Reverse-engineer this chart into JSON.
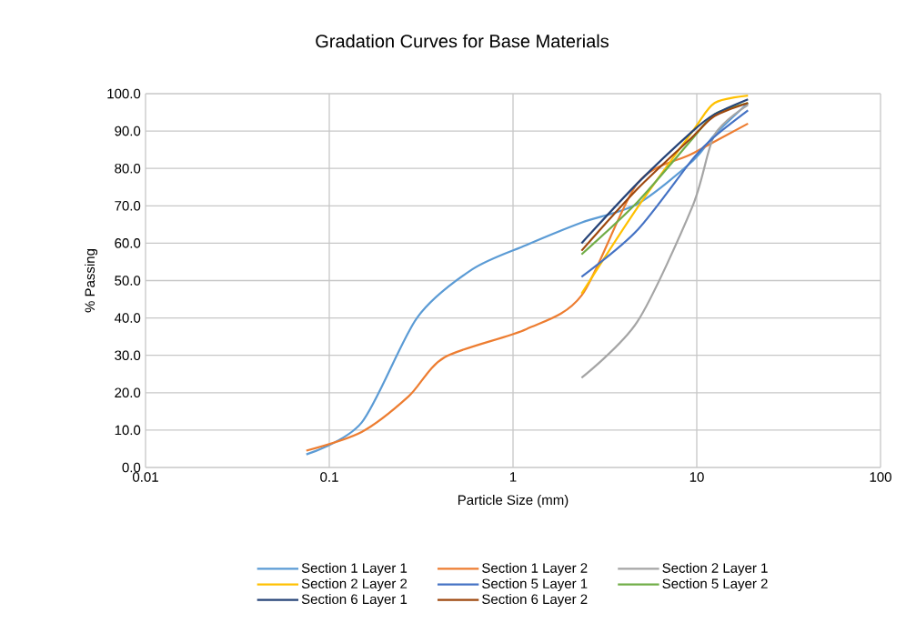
{
  "chart_data": {
    "type": "line",
    "title": "Gradation Curves for Base Materials",
    "xlabel": "Particle Size (mm)",
    "ylabel": "% Passing",
    "log": "x",
    "xlim": [
      0.01,
      100
    ],
    "xticks": [
      0.01,
      0.1,
      1,
      10,
      100
    ],
    "ylim": [
      0,
      100
    ],
    "yticks": [
      {
        "value": 0,
        "label": "0.0"
      },
      {
        "value": 10,
        "label": "10.0"
      },
      {
        "value": 20,
        "label": "20.0"
      },
      {
        "value": 30,
        "label": "30.0"
      },
      {
        "value": 40,
        "label": "40.0"
      },
      {
        "value": 50,
        "label": "50.0"
      },
      {
        "value": 60,
        "label": "60.0"
      },
      {
        "value": 70,
        "label": "70.0"
      },
      {
        "value": 80,
        "label": "80.0"
      },
      {
        "value": 90,
        "label": "90.0"
      },
      {
        "value": 100,
        "label": "100.0"
      }
    ],
    "grid": true,
    "legend": "bottom",
    "marker": "none",
    "series": [
      {
        "name": "Section 1 Layer 1",
        "color": "#5b9bd5",
        "x": [
          0.075,
          0.15,
          0.3,
          0.6,
          1.18,
          2.36,
          4.75,
          9.5,
          12.5,
          19
        ],
        "values": [
          3.5,
          12,
          40,
          53,
          59.5,
          65.5,
          70.5,
          82,
          89,
          97.5
        ]
      },
      {
        "name": "Section 1 Layer 2",
        "color": "#ed7d31",
        "x": [
          0.075,
          0.15,
          0.27,
          0.425,
          1.18,
          2.36,
          4.75,
          9.5,
          19
        ],
        "values": [
          4.5,
          9.5,
          19,
          29.5,
          37,
          46,
          76,
          84,
          92
        ]
      },
      {
        "name": "Section 2 Layer 1",
        "color": "#a5a5a5",
        "x": [
          2.36,
          4.75,
          9.5,
          12.5,
          19
        ],
        "values": [
          24,
          39,
          70,
          89,
          97
        ]
      },
      {
        "name": "Section 2 Layer 2",
        "color": "#ffc000",
        "x": [
          2.36,
          4.75,
          9.5,
          12.5,
          19
        ],
        "values": [
          46.5,
          69.5,
          90,
          97.5,
          99.5
        ]
      },
      {
        "name": "Section 5 Layer 1",
        "color": "#4472c4",
        "x": [
          2.36,
          4.75,
          9.5,
          12.5,
          19
        ],
        "values": [
          51,
          63.5,
          82.5,
          88.5,
          95.5
        ]
      },
      {
        "name": "Section 5 Layer 2",
        "color": "#70ad47",
        "x": [
          2.36,
          4.75,
          9.5,
          12.5,
          19
        ],
        "values": [
          57,
          71,
          88,
          94.5,
          97.5
        ]
      },
      {
        "name": "Section 6 Layer 1",
        "color": "#264478",
        "x": [
          2.36,
          4.75,
          9.5,
          12.5,
          19
        ],
        "values": [
          60,
          76,
          90,
          94.5,
          98.5
        ]
      },
      {
        "name": "Section 6 Layer 2",
        "color": "#9e480e",
        "x": [
          2.36,
          4.75,
          9.5,
          12.5,
          19
        ],
        "values": [
          58,
          74.5,
          88.5,
          94,
          97.5
        ]
      }
    ]
  }
}
